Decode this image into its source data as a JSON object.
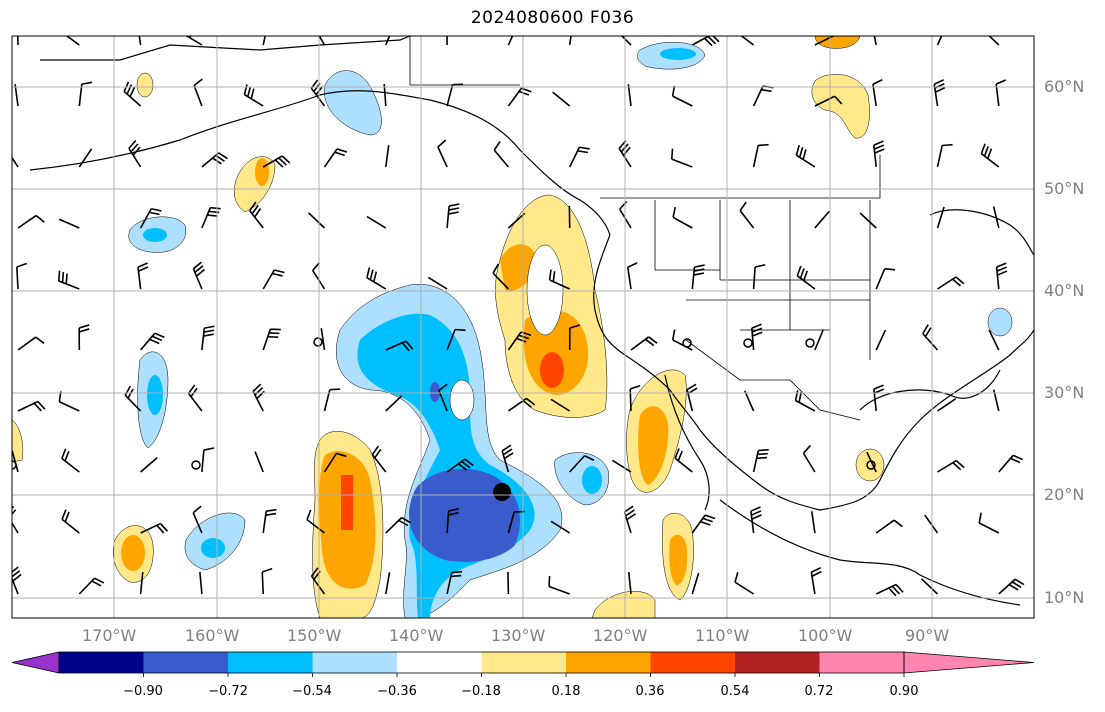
{
  "title": "2024080600 F036",
  "lat_labels": [
    "60°N",
    "50°N",
    "40°N",
    "30°N",
    "20°N",
    "10°N"
  ],
  "lon_labels": [
    "170°W",
    "160°W",
    "150°W",
    "140°W",
    "130°W",
    "120°W",
    "110°W",
    "100°W",
    "90°W"
  ],
  "colorbar": {
    "ticks": [
      "−0.90",
      "−0.72",
      "−0.54",
      "−0.36",
      "−0.18",
      "0.18",
      "0.36",
      "0.54",
      "0.72",
      "0.90"
    ],
    "colors": [
      "#9932CC",
      "#00008B",
      "#3A5BCB",
      "#00BFFF",
      "#ADDFFF",
      "#FFFFFF",
      "#FFE88A",
      "#FFA500",
      "#FF4500",
      "#B22222",
      "#FF85B0"
    ]
  },
  "map": {
    "projection": "PlateCarree",
    "lon_range": [
      -180,
      -80
    ],
    "lat_range": [
      8,
      65
    ],
    "grid": true,
    "storm_marker": "black dot near 20°N 133°W"
  }
}
